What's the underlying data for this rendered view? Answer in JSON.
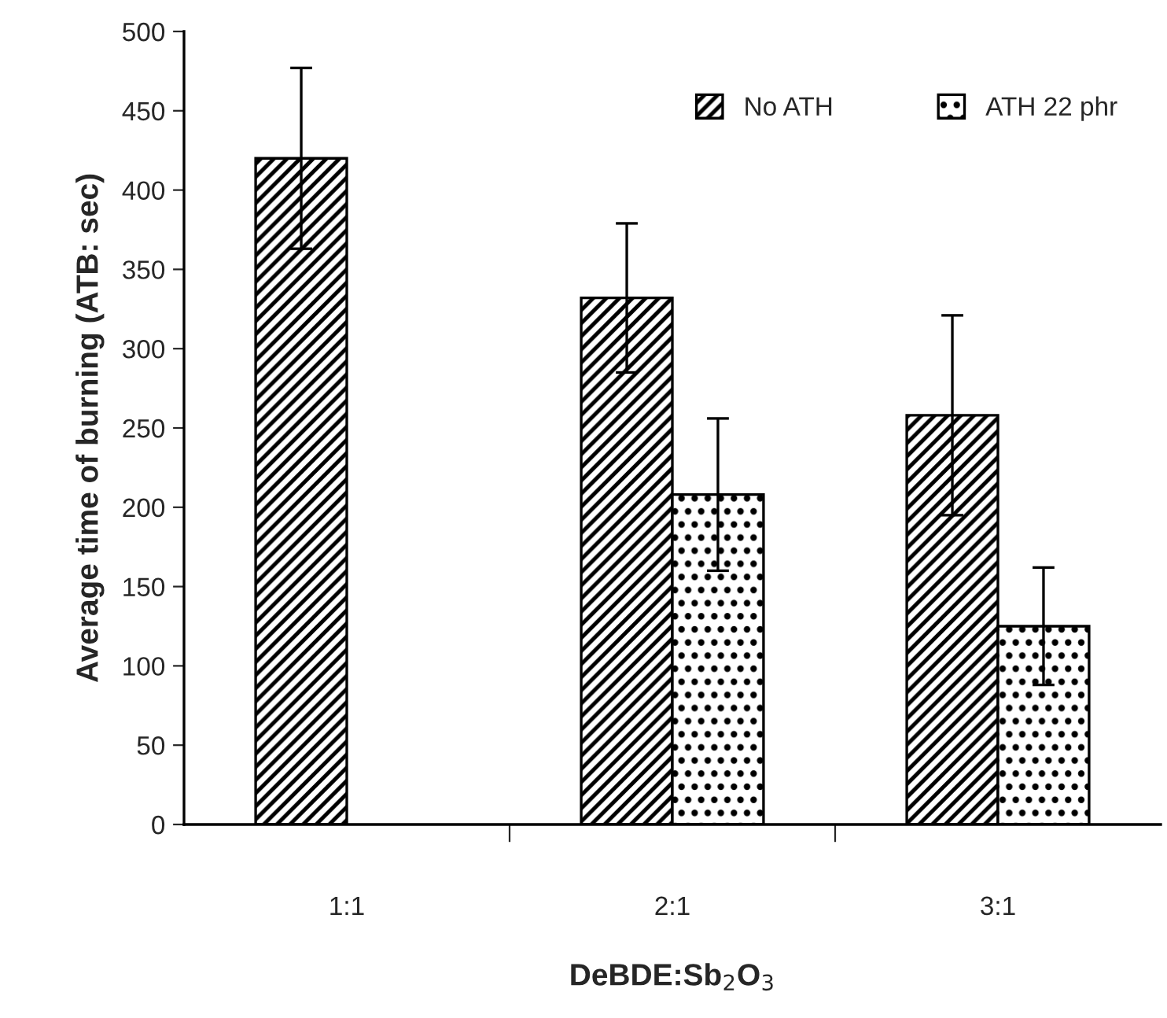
{
  "chart_data": {
    "type": "bar",
    "xlabel": "DeBDE:Sb$_{2}$O$_{3}$",
    "ylabel": "Average time of burning (ATB: sec)",
    "categories": [
      "1:1",
      "2:1",
      "3:1"
    ],
    "series": [
      {
        "name": "No ATH",
        "color": "#000000",
        "values": [
          420,
          332,
          258
        ],
        "errors": [
          57,
          47,
          63
        ]
      },
      {
        "name": "ATH 22 phr",
        "color": "#000000",
        "values": [
          null,
          208,
          125
        ],
        "errors": [
          null,
          48,
          37
        ]
      }
    ],
    "ylim": [
      0,
      500
    ],
    "yticks": [
      0,
      50,
      100,
      150,
      200,
      250,
      300,
      350,
      400,
      450,
      500
    ],
    "grid": false,
    "legend": "top right"
  }
}
